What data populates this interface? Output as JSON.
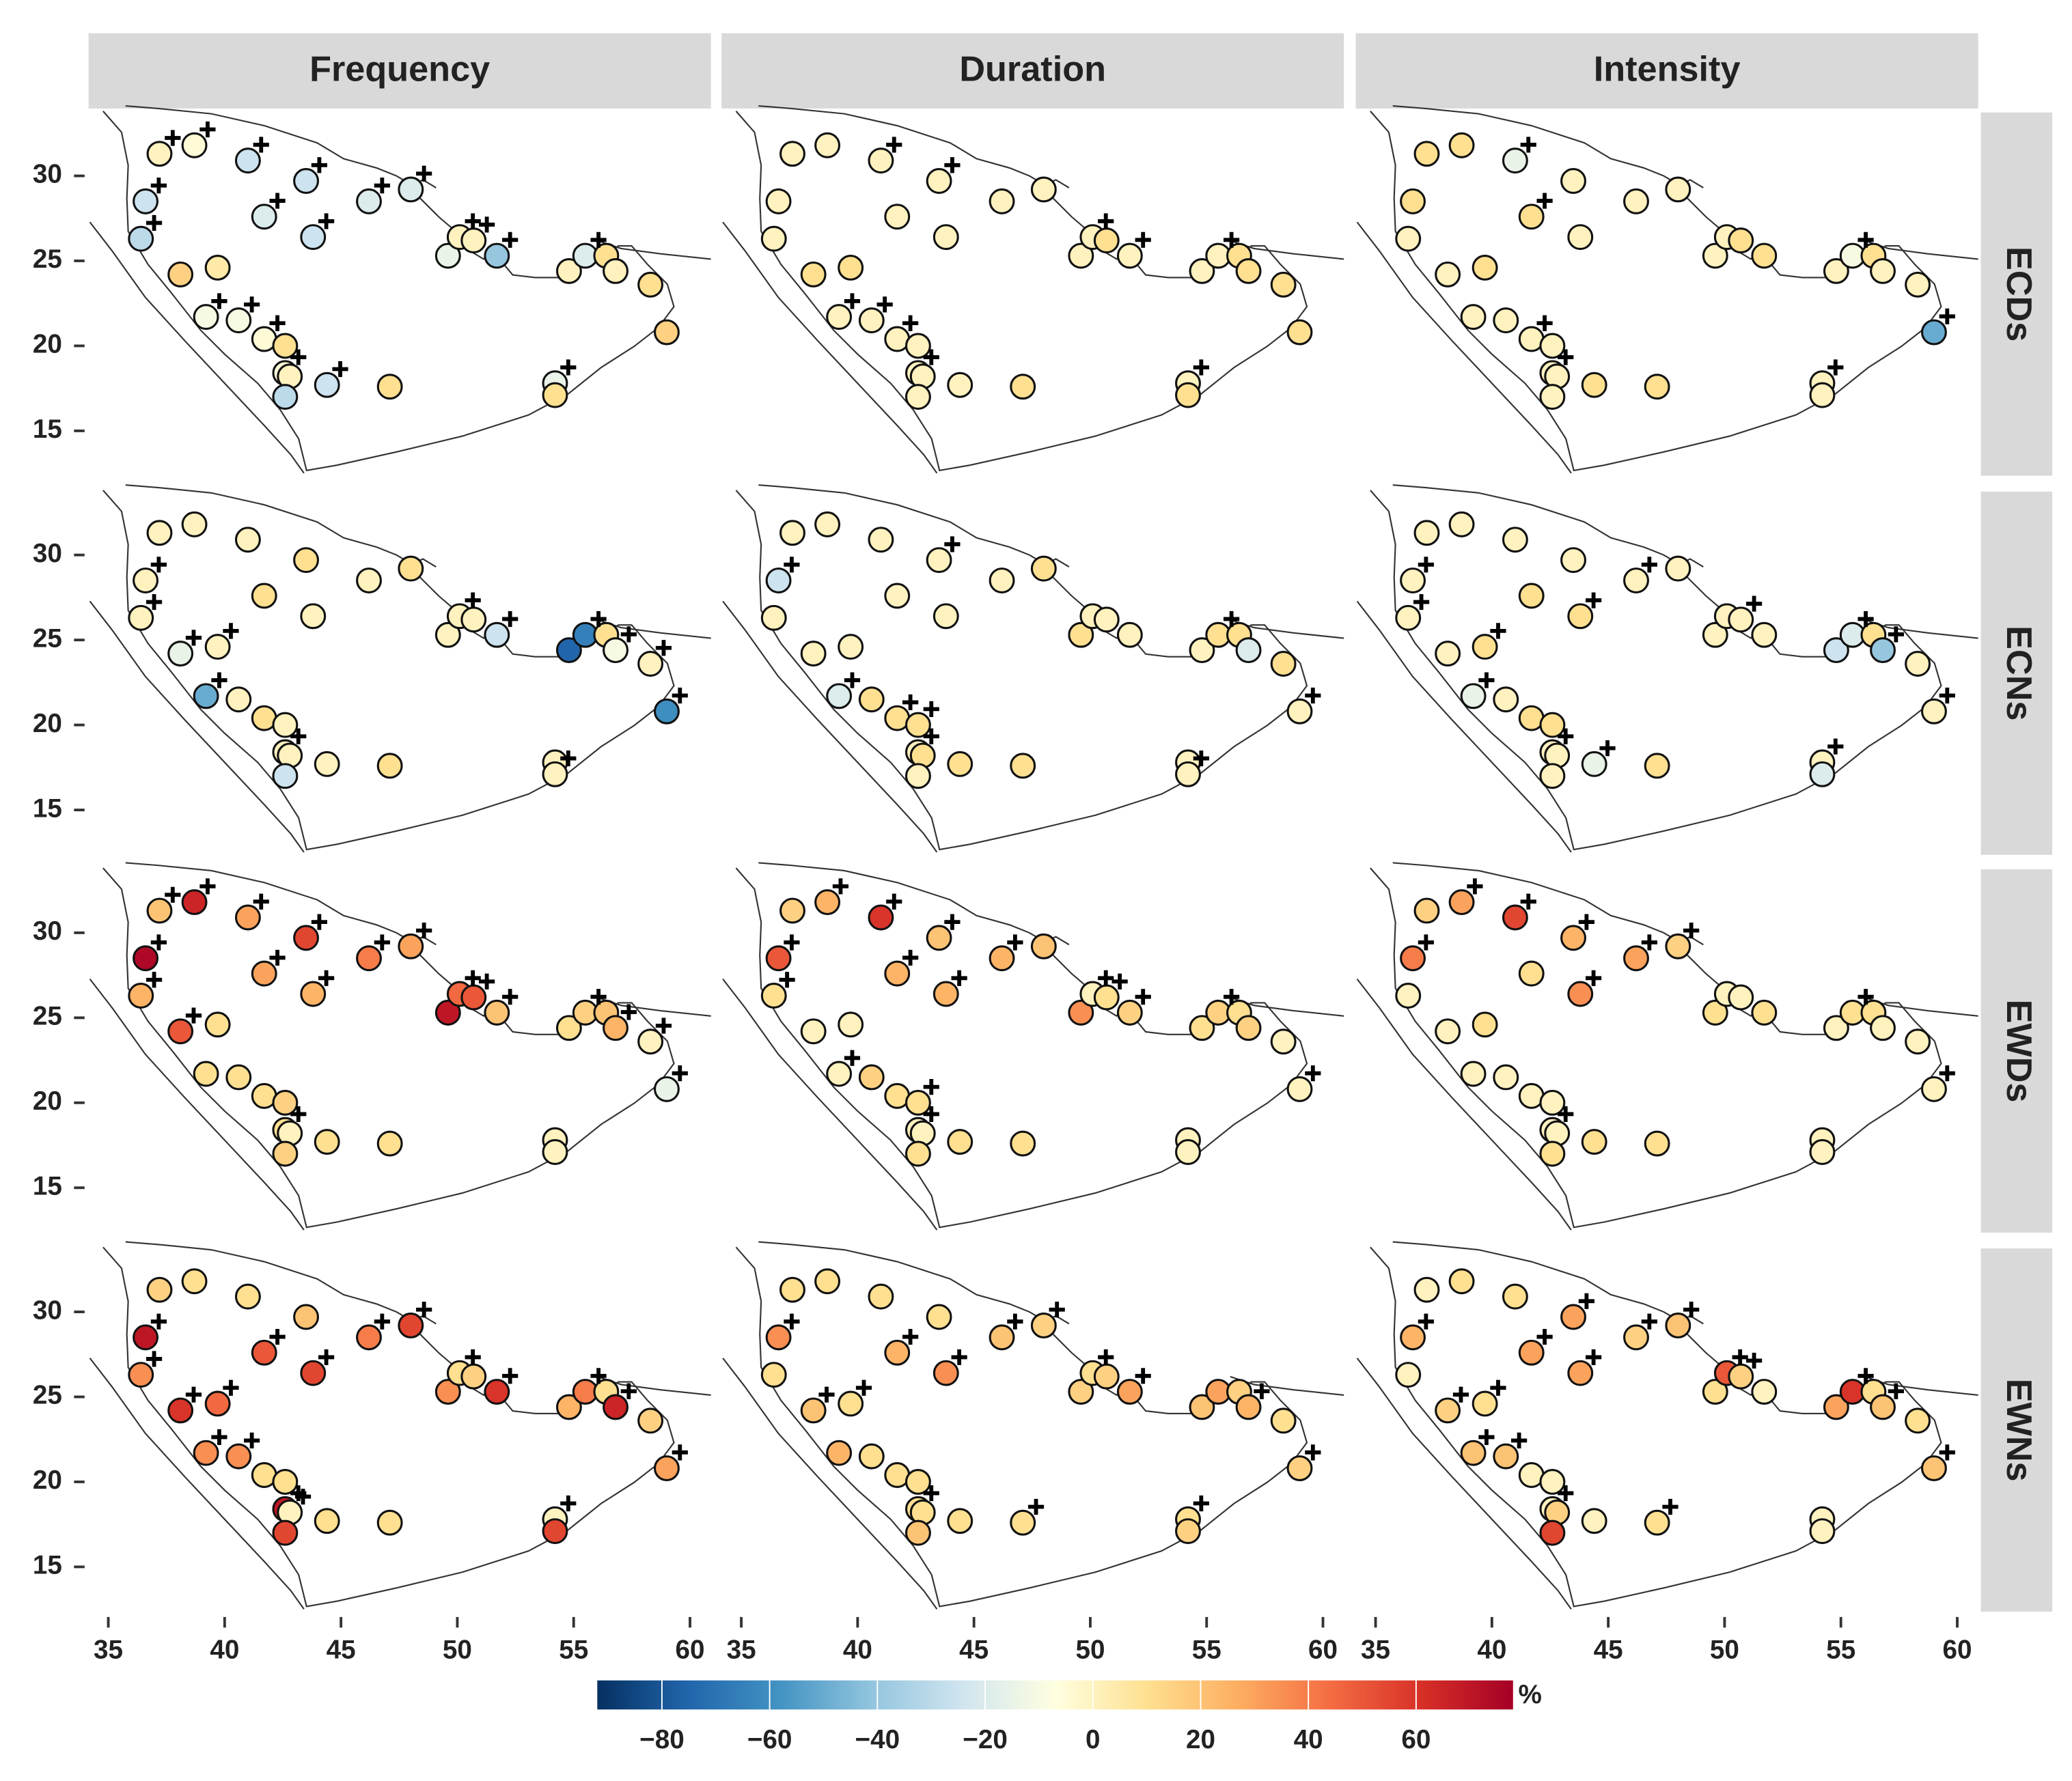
{
  "chart_data": {
    "type": "scatter",
    "columns": [
      "Frequency",
      "Duration",
      "Intensity"
    ],
    "rows": [
      "ECDs",
      "ECNs",
      "EWDs",
      "EWNs"
    ],
    "xlim": [
      34.15,
      60.9
    ],
    "ylim": [
      12.36,
      33.73
    ],
    "xticks": [
      35,
      40,
      45,
      50,
      55,
      60
    ],
    "yticks": [
      15,
      20,
      25,
      30
    ],
    "stations": {
      "lon": [
        37.2,
        38.7,
        41.0,
        43.5,
        36.6,
        36.4,
        41.7,
        43.8,
        46.2,
        48.0,
        38.1,
        39.7,
        39.2,
        40.6,
        41.7,
        42.6,
        42.6,
        42.8,
        42.6,
        44.4,
        47.1,
        49.6,
        50.1,
        50.7,
        51.7,
        54.2,
        54.2,
        54.8,
        55.5,
        56.4,
        56.8,
        58.3,
        59.0
      ],
      "lat": [
        31.3,
        31.8,
        30.9,
        29.7,
        28.5,
        26.3,
        27.6,
        26.4,
        28.5,
        29.2,
        24.2,
        24.6,
        21.7,
        21.5,
        20.4,
        20.0,
        18.4,
        18.2,
        17.0,
        17.7,
        17.6,
        25.3,
        26.4,
        26.2,
        25.3,
        17.8,
        17.1,
        24.4,
        25.3,
        25.3,
        24.4,
        23.6,
        20.8
      ]
    },
    "values": [
      [
        [
          0,
          -5,
          -25,
          -25,
          -25,
          -30,
          -20,
          -25,
          -20,
          -20,
          15,
          5,
          -10,
          -10,
          -5,
          10,
          -5,
          0,
          -30,
          -25,
          10,
          -15,
          0,
          0,
          -40,
          -15,
          10,
          0,
          -20,
          10,
          0,
          10,
          15
        ],
        [
          0,
          0,
          0,
          0,
          0,
          0,
          0,
          0,
          0,
          0,
          10,
          10,
          0,
          0,
          0,
          0,
          0,
          0,
          0,
          0,
          10,
          0,
          0,
          10,
          0,
          0,
          10,
          0,
          0,
          10,
          10,
          10,
          10
        ],
        [
          10,
          10,
          -15,
          0,
          10,
          0,
          10,
          0,
          0,
          0,
          0,
          10,
          0,
          0,
          0,
          0,
          0,
          0,
          0,
          10,
          10,
          0,
          0,
          10,
          10,
          0,
          0,
          0,
          -10,
          10,
          0,
          0,
          -50
        ]
      ],
      [
        [
          0,
          0,
          0,
          10,
          0,
          0,
          10,
          0,
          0,
          10,
          -15,
          0,
          -50,
          0,
          10,
          0,
          0,
          0,
          -25,
          0,
          10,
          0,
          0,
          0,
          -25,
          0,
          0,
          -75,
          -65,
          10,
          -10,
          0,
          -60
        ],
        [
          0,
          0,
          0,
          0,
          -25,
          0,
          0,
          0,
          0,
          10,
          0,
          0,
          -20,
          10,
          10,
          10,
          0,
          10,
          0,
          10,
          10,
          10,
          0,
          0,
          0,
          0,
          0,
          0,
          10,
          10,
          -20,
          10,
          0
        ],
        [
          0,
          0,
          0,
          0,
          0,
          0,
          10,
          10,
          0,
          0,
          0,
          10,
          -15,
          0,
          10,
          10,
          0,
          0,
          0,
          -15,
          10,
          0,
          0,
          0,
          0,
          0,
          -20,
          -25,
          -20,
          10,
          -40,
          0,
          0
        ]
      ],
      [
        [
          20,
          65,
          30,
          55,
          75,
          25,
          30,
          25,
          40,
          30,
          50,
          10,
          10,
          10,
          10,
          15,
          10,
          0,
          15,
          10,
          10,
          70,
          45,
          50,
          20,
          0,
          0,
          10,
          15,
          20,
          25,
          0,
          -15
        ],
        [
          15,
          25,
          60,
          20,
          50,
          10,
          25,
          25,
          25,
          20,
          0,
          0,
          0,
          15,
          10,
          10,
          0,
          0,
          10,
          10,
          10,
          35,
          0,
          10,
          15,
          0,
          0,
          10,
          15,
          10,
          15,
          0,
          0
        ],
        [
          15,
          30,
          55,
          25,
          40,
          0,
          10,
          35,
          30,
          15,
          0,
          10,
          0,
          0,
          0,
          0,
          0,
          0,
          10,
          10,
          10,
          10,
          0,
          0,
          10,
          0,
          0,
          0,
          10,
          10,
          0,
          0,
          0
        ]
      ],
      [
        [
          15,
          10,
          10,
          20,
          70,
          35,
          50,
          55,
          40,
          55,
          60,
          45,
          35,
          35,
          10,
          10,
          70,
          0,
          55,
          10,
          10,
          35,
          10,
          15,
          60,
          0,
          55,
          25,
          40,
          10,
          65,
          15,
          30
        ],
        [
          10,
          10,
          10,
          10,
          35,
          10,
          25,
          35,
          20,
          15,
          20,
          10,
          25,
          10,
          10,
          10,
          10,
          10,
          20,
          10,
          10,
          15,
          10,
          15,
          30,
          10,
          15,
          20,
          30,
          15,
          25,
          10,
          15
        ],
        [
          0,
          10,
          10,
          30,
          25,
          0,
          30,
          30,
          15,
          20,
          15,
          10,
          20,
          20,
          0,
          0,
          0,
          15,
          55,
          0,
          10,
          10,
          50,
          15,
          0,
          0,
          0,
          30,
          60,
          10,
          20,
          10,
          20
        ]
      ]
    ],
    "significant": [
      [
        [
          0,
          1,
          2,
          3,
          4,
          5,
          6,
          7,
          8,
          9,
          12,
          13,
          14,
          16,
          19,
          22,
          23,
          24,
          25,
          28
        ],
        [
          2,
          3,
          12,
          13,
          14,
          16,
          22,
          24,
          25,
          28
        ],
        [
          2,
          6,
          14,
          16,
          25,
          28,
          32
        ]
      ],
      [
        [
          4,
          5,
          10,
          11,
          12,
          16,
          22,
          24,
          26,
          28,
          30,
          31,
          32
        ],
        [
          3,
          4,
          12,
          14,
          15,
          16,
          26,
          28,
          32
        ],
        [
          4,
          5,
          7,
          8,
          11,
          12,
          16,
          19,
          23,
          25,
          28,
          30,
          32
        ]
      ],
      [
        [
          0,
          1,
          2,
          3,
          4,
          5,
          6,
          7,
          8,
          9,
          10,
          16,
          22,
          23,
          24,
          28,
          30,
          31,
          32
        ],
        [
          1,
          2,
          3,
          4,
          5,
          6,
          7,
          8,
          12,
          15,
          16,
          22,
          23,
          24,
          28,
          32
        ],
        [
          1,
          2,
          3,
          4,
          7,
          8,
          9,
          16,
          28,
          32
        ]
      ],
      [
        [
          4,
          5,
          6,
          7,
          8,
          9,
          10,
          11,
          12,
          13,
          16,
          17,
          22,
          24,
          25,
          28,
          30,
          32
        ],
        [
          4,
          6,
          7,
          8,
          9,
          10,
          11,
          16,
          20,
          22,
          24,
          25,
          30,
          32
        ],
        [
          3,
          4,
          6,
          7,
          8,
          9,
          10,
          11,
          12,
          13,
          16,
          20,
          22,
          23,
          28,
          30,
          32
        ]
      ]
    ],
    "colorbar": {
      "label": "%",
      "lim": [
        -92,
        78
      ],
      "colors": [
        "#053061",
        "#2166ac",
        "#4393c3",
        "#92c5de",
        "#d1e5f0",
        "#ffffe0",
        "#fee090",
        "#fdae61",
        "#f46d43",
        "#d73027",
        "#a50026"
      ],
      "ticks": [
        {
          "value": -80,
          "label": "−80"
        },
        {
          "value": -60,
          "label": "−60"
        },
        {
          "value": -40,
          "label": "−40"
        },
        {
          "value": -20,
          "label": "−20"
        },
        0,
        20,
        40,
        60
      ]
    }
  }
}
